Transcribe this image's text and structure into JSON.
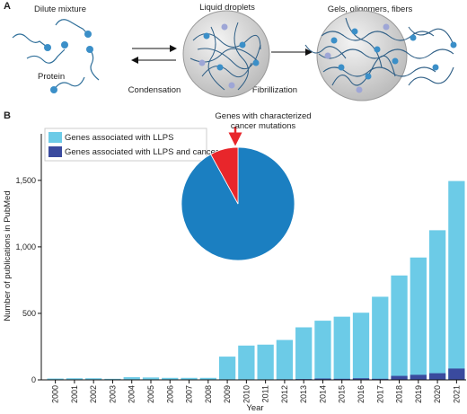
{
  "diagram": {
    "panel_label": "A",
    "dilute": "Dilute mixture",
    "protein": "Protein",
    "droplets": "Liquid droplets",
    "condensation": "Condensation",
    "fibrillization": "Fibrillization",
    "gels": "Gels, oligomers, fibers"
  },
  "chart_data": [
    {
      "type": "bar",
      "panel_label": "B",
      "barmode": "overlay",
      "legend": "upper left",
      "xlabel": "Year",
      "ylabel": "Number of publications in PubMed",
      "categories": [
        "2000",
        "2001",
        "2002",
        "2003",
        "2004",
        "2005",
        "2006",
        "2007",
        "2008",
        "2009",
        "2010",
        "2011",
        "2012",
        "2013",
        "2014",
        "2015",
        "2016",
        "2017",
        "2018",
        "2019",
        "2020",
        "2021"
      ],
      "series": [
        {
          "name": "Genes associated with LLPS",
          "color": "#6ccbe7",
          "values": [
            10,
            12,
            12,
            8,
            20,
            18,
            15,
            15,
            15,
            175,
            258,
            265,
            300,
            395,
            445,
            475,
            505,
            625,
            785,
            920,
            1125,
            1495
          ]
        },
        {
          "name": "Genes associated with LLPS and cancer",
          "color": "#3a4a9e",
          "values": [
            0,
            0,
            0,
            0,
            0,
            0,
            0,
            0,
            0,
            2,
            3,
            3,
            4,
            6,
            10,
            8,
            12,
            8,
            30,
            38,
            50,
            85
          ]
        }
      ],
      "ylim": [
        0,
        1850
      ],
      "yticks": [
        0,
        500,
        {
          "value": 1000,
          "label": "1,000"
        },
        {
          "value": 1500,
          "label": "1,500"
        }
      ]
    },
    {
      "type": "pie",
      "values": [
        92,
        8
      ],
      "colors": [
        "#1b7fc1",
        "#e8262b"
      ],
      "annotation": [
        "Genes with characterized",
        "cancer mutations"
      ]
    }
  ]
}
